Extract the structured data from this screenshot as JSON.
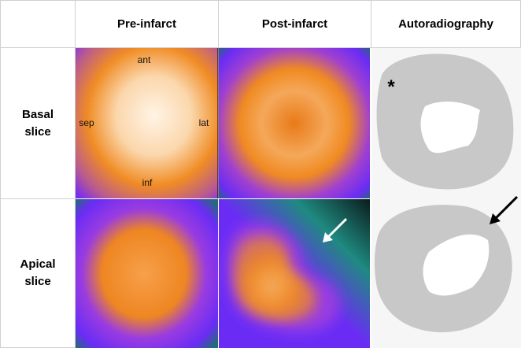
{
  "header": {
    "columns": [
      "Pre-infarct",
      "Post-infarct",
      "Autoradiography"
    ]
  },
  "rows": [
    {
      "label": "Basal slice"
    },
    {
      "label": "Apical slice"
    }
  ],
  "annotations": {
    "ant": "ant",
    "sep": "sep",
    "lat": "lat",
    "inf": "inf",
    "asterisk": "*"
  }
}
